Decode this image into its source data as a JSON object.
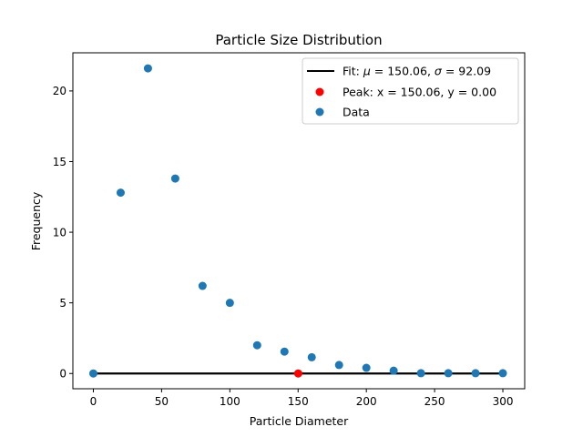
{
  "chart_data": {
    "type": "scatter",
    "title": "Particle Size Distribution",
    "xlabel": "Particle Diameter",
    "ylabel": "Frequency",
    "xlim": [
      -15,
      316
    ],
    "ylim": [
      -1.08,
      22.7
    ],
    "xticks": [
      0,
      50,
      100,
      150,
      200,
      250,
      300
    ],
    "yticks": [
      0,
      5,
      10,
      15,
      20
    ],
    "grid": false,
    "legend_position": "top-right",
    "series": [
      {
        "name": "Fit: μ = 150.06, σ = 92.09",
        "kind": "line",
        "color": "#000000",
        "x": [
          -15,
          316
        ],
        "y": [
          0,
          0
        ]
      },
      {
        "name": "Peak: x = 150.06, y = 0.00",
        "kind": "point",
        "color": "#ff0000",
        "x": [
          150.06
        ],
        "y": [
          0
        ]
      },
      {
        "name": "Data",
        "kind": "scatter",
        "color": "#1f77b4",
        "x": [
          0,
          20,
          40,
          60,
          80,
          100,
          120,
          140,
          160,
          180,
          200,
          220,
          240,
          260,
          280,
          300
        ],
        "y": [
          0,
          12.8,
          21.6,
          13.8,
          6.2,
          5.0,
          2.0,
          1.55,
          1.15,
          0.6,
          0.4,
          0.2,
          0.02,
          0.02,
          0.02,
          0.02
        ]
      }
    ],
    "legend": {
      "fit_prefix": "Fit: ",
      "mu_symbol": "μ",
      "fit_mid": " = 150.06, ",
      "sigma_symbol": "σ",
      "fit_suffix": " = 92.09",
      "peak_label": "Peak: x = 150.06, y = 0.00",
      "data_label": "Data"
    }
  }
}
